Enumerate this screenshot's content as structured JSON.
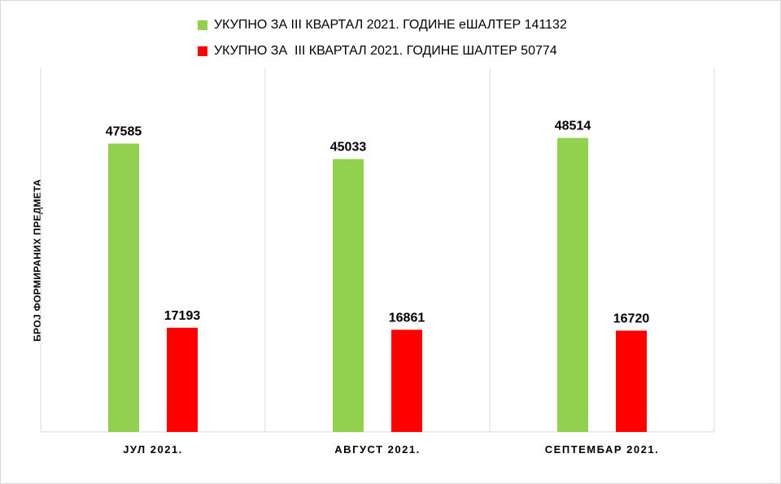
{
  "chart_data": {
    "type": "bar",
    "categories": [
      "ЈУЛ 2021.",
      "АВГУСТ 2021.",
      "СЕПТЕМБАР 2021."
    ],
    "series": [
      {
        "name": "УКУПНО ЗА III КВАРТАЛ 2021. ГОДИНЕ еШАЛТЕР 141132",
        "values": [
          47585,
          45033,
          48514
        ],
        "color": "#92d050"
      },
      {
        "name": "УКУПНО ЗА  III КВАРТАЛ 2021. ГОДИНЕ ШАЛТЕР 50774",
        "values": [
          17193,
          16861,
          16720
        ],
        "color": "#ff0000"
      }
    ],
    "ylabel": "БРОЈ ФОРМИРАНИХ ПРЕДМЕТА",
    "xlabel": "",
    "ylim": [
      0,
      60000
    ],
    "grid": "vertical category separators",
    "legend": "top"
  }
}
